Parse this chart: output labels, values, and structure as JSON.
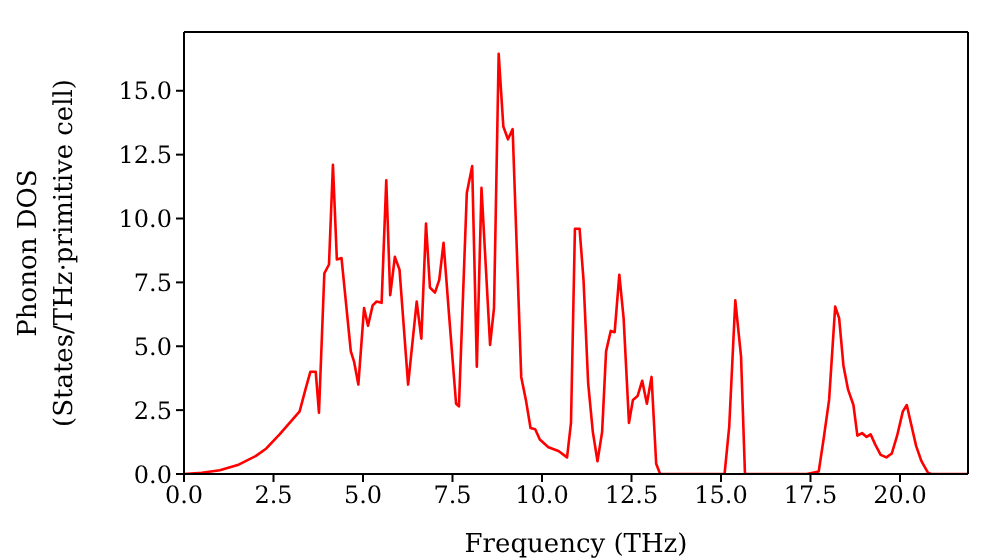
{
  "chart_data": {
    "type": "line",
    "xlabel": "Frequency (THz)",
    "ylabel": "Phonon DOS\n(States/THz·primitive cell)",
    "xlim": [
      0,
      21.9
    ],
    "xticks": [
      {
        "value": 0,
        "label": "0.0"
      },
      {
        "value": 2.5,
        "label": "2.5"
      },
      {
        "value": 5,
        "label": "5.0"
      },
      {
        "value": 7.5,
        "label": "7.5"
      },
      {
        "value": 10,
        "label": "10.0"
      },
      {
        "value": 12.5,
        "label": "12.5"
      },
      {
        "value": 15,
        "label": "15.0"
      },
      {
        "value": 17.5,
        "label": "17.5"
      },
      {
        "value": 20,
        "label": "20.0"
      }
    ],
    "ylim": [
      0,
      17.3
    ],
    "yticks": [
      {
        "value": 0,
        "label": "0.0"
      },
      {
        "value": 2.5,
        "label": "2.5"
      },
      {
        "value": 5,
        "label": "5.0"
      },
      {
        "value": 7.5,
        "label": "7.5"
      },
      {
        "value": 10,
        "label": "10.0"
      },
      {
        "value": 12.5,
        "label": "12.5"
      },
      {
        "value": 15,
        "label": "15.0"
      }
    ],
    "marker": "none",
    "line_style": "solid",
    "series": [
      {
        "color": "#ff0000",
        "x": [
          0,
          0.5,
          1,
          1.5,
          2,
          2.3,
          2.67,
          3.23,
          3.41,
          3.53,
          3.68,
          3.77,
          3.92,
          4.05,
          4.16,
          4.27,
          4.4,
          4.66,
          4.75,
          4.87,
          5.03,
          5.14,
          5.27,
          5.38,
          5.52,
          5.65,
          5.76,
          5.89,
          6.02,
          6.26,
          6.5,
          6.63,
          6.76,
          6.87,
          7.01,
          7.13,
          7.25,
          7.4,
          7.6,
          7.68,
          7.9,
          8.05,
          8.18,
          8.31,
          8.55,
          8.66,
          8.79,
          8.92,
          9.05,
          9.18,
          9.42,
          9.55,
          9.68,
          9.81,
          9.94,
          10.18,
          10.46,
          10.7,
          10.81,
          10.92,
          11.05,
          11.16,
          11.29,
          11.42,
          11.55,
          11.68,
          11.79,
          11.92,
          12.03,
          12.16,
          12.28,
          12.43,
          12.54,
          12.67,
          12.8,
          12.93,
          13.06,
          13.19,
          13.3,
          15.1,
          15.23,
          15.4,
          15.56,
          15.67,
          17.4,
          17.73,
          17.87,
          18.02,
          18.19,
          18.3,
          18.42,
          18.55,
          18.7,
          18.81,
          18.94,
          19.07,
          19.18,
          19.31,
          19.46,
          19.62,
          19.77,
          19.92,
          20.08,
          20.19,
          20.32,
          20.45,
          20.6,
          20.78,
          20.87,
          21.9
        ],
        "values": [
          0,
          0.05,
          0.15,
          0.35,
          0.7,
          1.0,
          1.55,
          2.45,
          3.4,
          4.0,
          4.0,
          2.4,
          7.85,
          8.2,
          12.1,
          8.4,
          8.45,
          4.8,
          4.4,
          3.5,
          6.5,
          5.8,
          6.6,
          6.75,
          6.7,
          11.5,
          7.0,
          8.5,
          8.0,
          3.5,
          6.75,
          5.3,
          9.8,
          7.3,
          7.1,
          7.6,
          9.05,
          6.3,
          2.75,
          2.65,
          11.0,
          12.05,
          4.2,
          11.2,
          5.05,
          6.5,
          16.45,
          13.6,
          13.1,
          13.5,
          3.8,
          2.9,
          1.8,
          1.75,
          1.35,
          1.05,
          0.9,
          0.65,
          2.0,
          9.6,
          9.6,
          7.6,
          3.55,
          1.65,
          0.5,
          1.65,
          4.8,
          5.6,
          5.55,
          7.8,
          6.1,
          2.0,
          2.9,
          3.05,
          3.65,
          2.75,
          3.8,
          0.4,
          0,
          0,
          1.85,
          6.8,
          4.6,
          0,
          0,
          0.1,
          1.4,
          2.9,
          6.55,
          6.1,
          4.25,
          3.3,
          2.7,
          1.5,
          1.6,
          1.45,
          1.55,
          1.15,
          0.75,
          0.65,
          0.8,
          1.5,
          2.45,
          2.7,
          1.9,
          1.1,
          0.5,
          0.05,
          0,
          0
        ]
      }
    ]
  }
}
